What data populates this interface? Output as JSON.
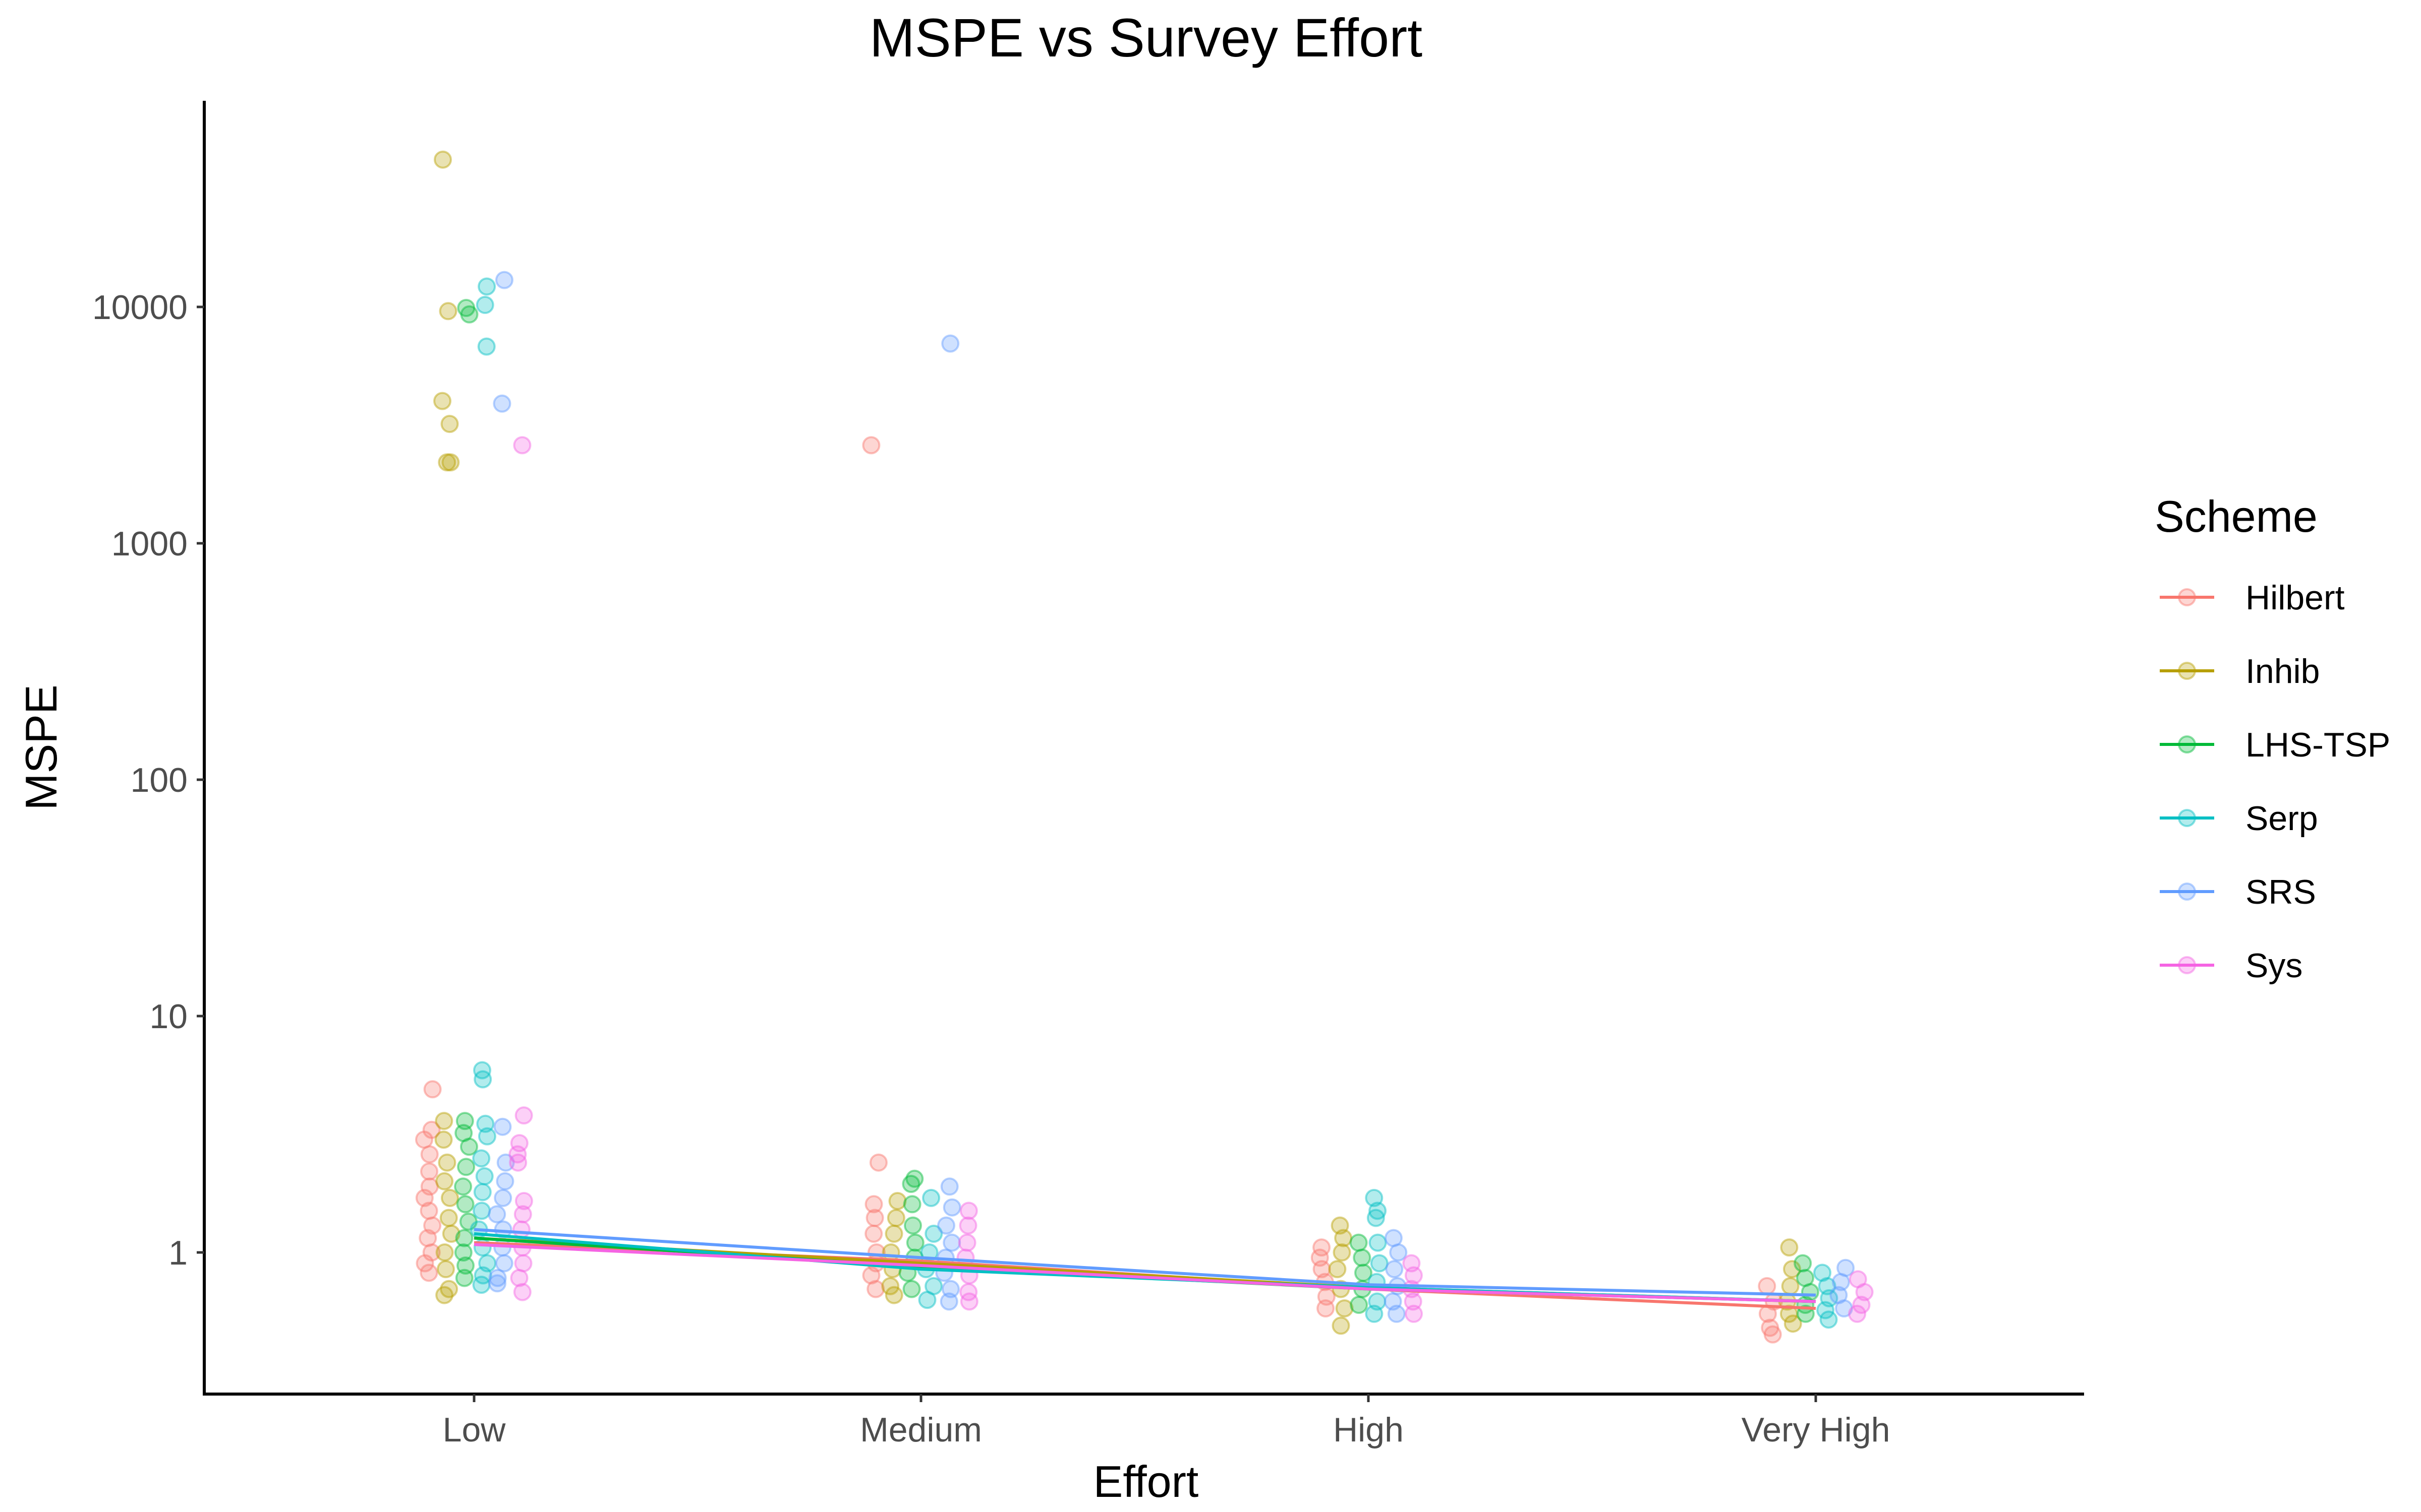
{
  "chart_data": {
    "type": "scatter",
    "title": "MSPE vs Survey Effort",
    "xlabel": "Effort",
    "ylabel": "MSPE",
    "y_scale": "log10",
    "ylim": [
      0.3,
      90000
    ],
    "y_ticks": [
      1,
      10,
      100,
      1000,
      10000
    ],
    "y_tick_labels": [
      "1",
      "10",
      "100",
      "1000",
      "10000"
    ],
    "categories": [
      "Low",
      "Medium",
      "High",
      "Very High"
    ],
    "grid": false,
    "legend": {
      "title": "Scheme",
      "placement": "right"
    },
    "series": [
      {
        "name": "Hilbert",
        "color": "#F8766D",
        "means": [
          1.1,
          0.92,
          0.7,
          0.58
        ],
        "points": [
          [
            "Low",
            4.9
          ],
          [
            "Low",
            3.3
          ],
          [
            "Low",
            3.0
          ],
          [
            "Low",
            2.6
          ],
          [
            "Low",
            2.2
          ],
          [
            "Low",
            1.9
          ],
          [
            "Low",
            1.7
          ],
          [
            "Low",
            1.5
          ],
          [
            "Low",
            1.3
          ],
          [
            "Low",
            1.15
          ],
          [
            "Low",
            1.0
          ],
          [
            "Low",
            0.9
          ],
          [
            "Low",
            0.82
          ],
          [
            "Medium",
            2600
          ],
          [
            "Medium",
            2.4
          ],
          [
            "Medium",
            1.6
          ],
          [
            "Medium",
            1.4
          ],
          [
            "Medium",
            1.2
          ],
          [
            "Medium",
            1.0
          ],
          [
            "Medium",
            0.9
          ],
          [
            "Medium",
            0.8
          ],
          [
            "Medium",
            0.7
          ],
          [
            "High",
            1.05
          ],
          [
            "High",
            0.95
          ],
          [
            "High",
            0.85
          ],
          [
            "High",
            0.75
          ],
          [
            "High",
            0.65
          ],
          [
            "High",
            0.58
          ],
          [
            "Very High",
            0.72
          ],
          [
            "Very High",
            0.62
          ],
          [
            "Very High",
            0.55
          ],
          [
            "Very High",
            0.48
          ],
          [
            "Very High",
            0.45
          ]
        ]
      },
      {
        "name": "Inhib",
        "color": "#B79F00",
        "means": [
          1.15,
          0.9,
          0.71,
          0.62
        ],
        "points": [
          [
            "Low",
            42000
          ],
          [
            "Low",
            9600
          ],
          [
            "Low",
            4000
          ],
          [
            "Low",
            3200
          ],
          [
            "Low",
            2200
          ],
          [
            "Low",
            2200
          ],
          [
            "Low",
            3.6
          ],
          [
            "Low",
            3.0
          ],
          [
            "Low",
            2.4
          ],
          [
            "Low",
            2.0
          ],
          [
            "Low",
            1.7
          ],
          [
            "Low",
            1.4
          ],
          [
            "Low",
            1.2
          ],
          [
            "Low",
            1.0
          ],
          [
            "Low",
            0.85
          ],
          [
            "Low",
            0.7
          ],
          [
            "Low",
            0.66
          ],
          [
            "Medium",
            1.65
          ],
          [
            "Medium",
            1.4
          ],
          [
            "Medium",
            1.2
          ],
          [
            "Medium",
            1.0
          ],
          [
            "Medium",
            0.85
          ],
          [
            "Medium",
            0.72
          ],
          [
            "Medium",
            0.66
          ],
          [
            "High",
            1.3
          ],
          [
            "High",
            1.15
          ],
          [
            "High",
            1.0
          ],
          [
            "High",
            0.85
          ],
          [
            "High",
            0.7
          ],
          [
            "High",
            0.58
          ],
          [
            "High",
            0.49
          ],
          [
            "Very High",
            1.05
          ],
          [
            "Very High",
            0.85
          ],
          [
            "Very High",
            0.72
          ],
          [
            "Very High",
            0.62
          ],
          [
            "Very High",
            0.55
          ],
          [
            "Very High",
            0.5
          ]
        ]
      },
      {
        "name": "LHS-TSP",
        "color": "#00BA38",
        "means": [
          1.15,
          0.87,
          0.7,
          0.62
        ],
        "points": [
          [
            "Low",
            9900
          ],
          [
            "Low",
            9300
          ],
          [
            "Low",
            3.6
          ],
          [
            "Low",
            3.2
          ],
          [
            "Low",
            2.8
          ],
          [
            "Low",
            2.3
          ],
          [
            "Low",
            1.9
          ],
          [
            "Low",
            1.6
          ],
          [
            "Low",
            1.35
          ],
          [
            "Low",
            1.15
          ],
          [
            "Low",
            1.0
          ],
          [
            "Low",
            0.88
          ],
          [
            "Low",
            0.78
          ],
          [
            "Medium",
            2.05
          ],
          [
            "Medium",
            1.95
          ],
          [
            "Medium",
            1.6
          ],
          [
            "Medium",
            1.3
          ],
          [
            "Medium",
            1.1
          ],
          [
            "Medium",
            0.95
          ],
          [
            "Medium",
            0.82
          ],
          [
            "Medium",
            0.7
          ],
          [
            "High",
            1.1
          ],
          [
            "High",
            0.95
          ],
          [
            "High",
            0.82
          ],
          [
            "High",
            0.7
          ],
          [
            "High",
            0.6
          ],
          [
            "Very High",
            0.9
          ],
          [
            "Very High",
            0.78
          ],
          [
            "Very High",
            0.68
          ],
          [
            "Very High",
            0.6
          ],
          [
            "Very High",
            0.55
          ]
        ]
      },
      {
        "name": "Serp",
        "color": "#00BFC4",
        "means": [
          1.2,
          0.85,
          0.71,
          0.62
        ],
        "points": [
          [
            "Low",
            12200
          ],
          [
            "Low",
            10200
          ],
          [
            "Low",
            6800
          ],
          [
            "Low",
            5.9
          ],
          [
            "Low",
            5.4
          ],
          [
            "Low",
            3.5
          ],
          [
            "Low",
            3.1
          ],
          [
            "Low",
            2.5
          ],
          [
            "Low",
            2.1
          ],
          [
            "Low",
            1.8
          ],
          [
            "Low",
            1.5
          ],
          [
            "Low",
            1.25
          ],
          [
            "Low",
            1.05
          ],
          [
            "Low",
            0.9
          ],
          [
            "Low",
            0.8
          ],
          [
            "Low",
            0.73
          ],
          [
            "Medium",
            1.7
          ],
          [
            "Medium",
            1.2
          ],
          [
            "Medium",
            1.0
          ],
          [
            "Medium",
            0.85
          ],
          [
            "Medium",
            0.72
          ],
          [
            "Medium",
            0.63
          ],
          [
            "High",
            1.7
          ],
          [
            "High",
            1.5
          ],
          [
            "High",
            1.4
          ],
          [
            "High",
            1.1
          ],
          [
            "High",
            0.9
          ],
          [
            "High",
            0.75
          ],
          [
            "High",
            0.62
          ],
          [
            "High",
            0.55
          ],
          [
            "Very High",
            0.82
          ],
          [
            "Very High",
            0.72
          ],
          [
            "Very High",
            0.64
          ],
          [
            "Very High",
            0.57
          ],
          [
            "Very High",
            0.52
          ]
        ]
      },
      {
        "name": "SRS",
        "color": "#619CFF",
        "means": [
          1.25,
          0.95,
          0.73,
          0.66
        ],
        "points": [
          [
            "Low",
            13000
          ],
          [
            "Low",
            3900
          ],
          [
            "Low",
            3.4
          ],
          [
            "Low",
            2.4
          ],
          [
            "Low",
            2.0
          ],
          [
            "Low",
            1.7
          ],
          [
            "Low",
            1.45
          ],
          [
            "Low",
            1.25
          ],
          [
            "Low",
            1.05
          ],
          [
            "Low",
            0.9
          ],
          [
            "Low",
            0.78
          ],
          [
            "Low",
            0.74
          ],
          [
            "Medium",
            7000
          ],
          [
            "Medium",
            1.9
          ],
          [
            "Medium",
            1.55
          ],
          [
            "Medium",
            1.3
          ],
          [
            "Medium",
            1.1
          ],
          [
            "Medium",
            0.95
          ],
          [
            "Medium",
            0.82
          ],
          [
            "Medium",
            0.7
          ],
          [
            "Medium",
            0.62
          ],
          [
            "High",
            1.15
          ],
          [
            "High",
            1.0
          ],
          [
            "High",
            0.85
          ],
          [
            "High",
            0.72
          ],
          [
            "High",
            0.62
          ],
          [
            "High",
            0.55
          ],
          [
            "Very High",
            0.86
          ],
          [
            "Very High",
            0.75
          ],
          [
            "Very High",
            0.66
          ],
          [
            "Very High",
            0.58
          ]
        ]
      },
      {
        "name": "Sys",
        "color": "#F564E3",
        "means": [
          1.08,
          0.88,
          0.7,
          0.62
        ],
        "points": [
          [
            "Low",
            2600
          ],
          [
            "Low",
            3.8
          ],
          [
            "Low",
            2.9
          ],
          [
            "Low",
            2.6
          ],
          [
            "Low",
            2.4
          ],
          [
            "Low",
            1.65
          ],
          [
            "Low",
            1.45
          ],
          [
            "Low",
            1.25
          ],
          [
            "Low",
            1.05
          ],
          [
            "Low",
            0.9
          ],
          [
            "Low",
            0.78
          ],
          [
            "Low",
            0.68
          ],
          [
            "Medium",
            1.5
          ],
          [
            "Medium",
            1.3
          ],
          [
            "Medium",
            1.1
          ],
          [
            "Medium",
            0.95
          ],
          [
            "Medium",
            0.8
          ],
          [
            "Medium",
            0.68
          ],
          [
            "Medium",
            0.62
          ],
          [
            "High",
            0.9
          ],
          [
            "High",
            0.8
          ],
          [
            "High",
            0.7
          ],
          [
            "High",
            0.62
          ],
          [
            "High",
            0.55
          ],
          [
            "Very High",
            0.77
          ],
          [
            "Very High",
            0.68
          ],
          [
            "Very High",
            0.6
          ],
          [
            "Very High",
            0.55
          ]
        ]
      }
    ]
  }
}
